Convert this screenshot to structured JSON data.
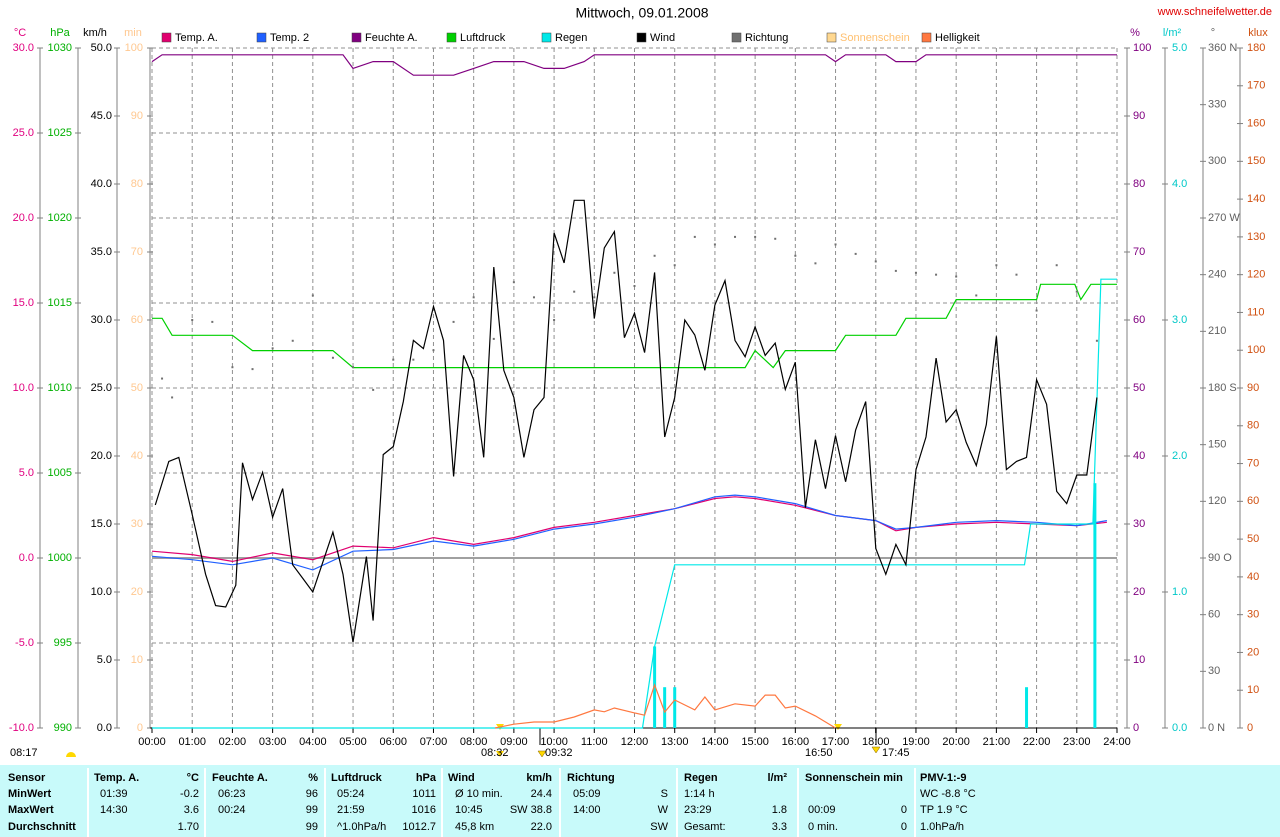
{
  "chart_data": {
    "type": "line",
    "title": "Mittwoch, 09.01.2008",
    "source": "www.schneifelwetter.de",
    "xlim": [
      0,
      24
    ],
    "xticks": [
      {
        "value": 0,
        "label": "00:00"
      },
      {
        "value": 1,
        "label": "01:00"
      },
      {
        "value": 2,
        "label": "02:00"
      },
      {
        "value": 3,
        "label": "03:00"
      },
      {
        "value": 4,
        "label": "04:00"
      },
      {
        "value": 5,
        "label": "05:00"
      },
      {
        "value": 6,
        "label": "06:00"
      },
      {
        "value": 7,
        "label": "07:00"
      },
      {
        "value": 8,
        "label": "08:00"
      },
      {
        "value": 9,
        "label": "09:00"
      },
      {
        "value": 10,
        "label": "10:00"
      },
      {
        "value": 11,
        "label": "11:00"
      },
      {
        "value": 12,
        "label": "12:00"
      },
      {
        "value": 13,
        "label": "13:00"
      },
      {
        "value": 14,
        "label": "14:00"
      },
      {
        "value": 15,
        "label": "15:00"
      },
      {
        "value": 16,
        "label": "16:00"
      },
      {
        "value": 17,
        "label": "17:00"
      },
      {
        "value": 18,
        "label": "18:00"
      },
      {
        "value": 19,
        "label": "19:00"
      },
      {
        "value": 20,
        "label": "20:00"
      },
      {
        "value": 21,
        "label": "21:00"
      },
      {
        "value": 22,
        "label": "22:00"
      },
      {
        "value": 23,
        "label": "23:00"
      },
      {
        "value": 24,
        "label": "24:00"
      }
    ],
    "axes": [
      {
        "label": "°C",
        "side": "left",
        "color": "#e0007f",
        "grid": true,
        "ylim": [
          -10,
          30
        ],
        "yticks": [
          {
            "value": -10,
            "label": "-10.0"
          },
          {
            "value": -5,
            "label": "-5.0"
          },
          {
            "value": 0,
            "label": "0.0"
          },
          {
            "value": 5,
            "label": "5.0"
          },
          {
            "value": 10,
            "label": "10.0"
          },
          {
            "value": 15,
            "label": "15.0"
          },
          {
            "value": 20,
            "label": "20.0"
          },
          {
            "value": 25,
            "label": "25.0"
          },
          {
            "value": 30,
            "label": "30.0"
          }
        ]
      },
      {
        "label": "hPa",
        "side": "left",
        "color": "#00b000",
        "ylim": [
          990,
          1030
        ],
        "yticks": [
          990,
          995,
          1000,
          1005,
          1010,
          1015,
          1020,
          1025,
          1030
        ]
      },
      {
        "label": "km/h",
        "side": "left",
        "color": "#000000",
        "ylim": [
          0,
          50
        ],
        "yticks": [
          {
            "value": 0,
            "label": "0.0"
          },
          {
            "value": 5,
            "label": "5.0"
          },
          {
            "value": 10,
            "label": "10.0"
          },
          {
            "value": 15,
            "label": "15.0"
          },
          {
            "value": 20,
            "label": "20.0"
          },
          {
            "value": 25,
            "label": "25.0"
          },
          {
            "value": 30,
            "label": "30.0"
          },
          {
            "value": 35,
            "label": "35.0"
          },
          {
            "value": 40,
            "label": "40.0"
          },
          {
            "value": 45,
            "label": "45.0"
          },
          {
            "value": 50,
            "label": "50.0"
          }
        ]
      },
      {
        "label": "min",
        "side": "left",
        "color": "#ffc890",
        "ylim": [
          0,
          100
        ],
        "yticks": [
          0,
          10,
          20,
          30,
          40,
          50,
          60,
          70,
          80,
          90,
          100
        ]
      },
      {
        "label": "%",
        "side": "right",
        "color": "#800080",
        "ylim": [
          0,
          100
        ],
        "yticks": [
          0,
          10,
          20,
          30,
          40,
          50,
          60,
          70,
          80,
          90,
          100
        ]
      },
      {
        "label": "l/m²",
        "side": "right",
        "color": "#00c8c8",
        "ylim": [
          0,
          5
        ],
        "yticks": [
          {
            "value": 0,
            "label": "0.0"
          },
          {
            "value": 1,
            "label": "1.0"
          },
          {
            "value": 2,
            "label": "2.0"
          },
          {
            "value": 3,
            "label": "3.0"
          },
          {
            "value": 4,
            "label": "4.0"
          },
          {
            "value": 5,
            "label": "5.0"
          }
        ]
      },
      {
        "label": "°",
        "side": "right",
        "color": "#606060",
        "ylim": [
          0,
          360
        ],
        "yticks": [
          {
            "value": 0,
            "label": "0 N"
          },
          30,
          60,
          {
            "value": 90,
            "label": "90 O"
          },
          120,
          150,
          {
            "value": 180,
            "label": "180 S"
          },
          210,
          240,
          {
            "value": 270,
            "label": "270 W"
          },
          300,
          330,
          {
            "value": 360,
            "label": "360 N"
          }
        ]
      },
      {
        "label": "klux",
        "side": "right",
        "color": "#d05010",
        "ylim": [
          0,
          180
        ],
        "yticks": [
          0,
          10,
          20,
          30,
          40,
          50,
          60,
          70,
          80,
          90,
          100,
          110,
          120,
          130,
          140,
          150,
          160,
          170,
          180
        ]
      }
    ],
    "series": [
      {
        "name": "Temp. A.",
        "color": "#e0006f",
        "type": "line",
        "axis": 0,
        "x": [
          0,
          1,
          2,
          3,
          4,
          5,
          6,
          7,
          8,
          9,
          10,
          11,
          12,
          13,
          14,
          14.5,
          15,
          16,
          17,
          18,
          18.5,
          19,
          20,
          21,
          22,
          23,
          23.75
        ],
        "values": [
          0.4,
          0.2,
          -0.2,
          0.3,
          -0.1,
          0.7,
          0.6,
          1.2,
          0.8,
          1.2,
          1.8,
          2.1,
          2.5,
          2.9,
          3.5,
          3.6,
          3.5,
          3.1,
          2.5,
          2.2,
          1.6,
          1.8,
          2.0,
          2.1,
          2.0,
          1.9,
          2.1
        ]
      },
      {
        "name": "Temp. 2",
        "color": "#2060ff",
        "type": "line",
        "axis": 0,
        "x": [
          0,
          1,
          2,
          3,
          4,
          5,
          6,
          7,
          8,
          9,
          10,
          11,
          12,
          13,
          14,
          14.5,
          15,
          16,
          17,
          18,
          18.5,
          19,
          20,
          21,
          22,
          23,
          23.75
        ],
        "values": [
          0.1,
          -0.1,
          -0.4,
          0.0,
          -0.7,
          0.4,
          0.5,
          1.0,
          0.7,
          1.1,
          1.7,
          2.0,
          2.4,
          2.9,
          3.6,
          3.7,
          3.6,
          3.2,
          2.5,
          2.2,
          1.7,
          1.8,
          2.1,
          2.2,
          2.1,
          1.9,
          2.2
        ]
      },
      {
        "name": "Feuchte A.",
        "color": "#800080",
        "type": "line",
        "axis": 4,
        "x": [
          0,
          0.25,
          4.75,
          5,
          5.5,
          6,
          6.5,
          7.5,
          8,
          8.5,
          9.25,
          9.75,
          10.25,
          10.75,
          11,
          16.75,
          17,
          17.25,
          18.25,
          18.5,
          19,
          19.25,
          24
        ],
        "values": [
          98,
          99,
          99,
          97,
          98,
          98,
          96,
          96,
          97,
          98,
          98,
          97,
          97,
          98,
          99,
          99,
          98,
          99,
          99,
          98,
          98,
          99,
          99
        ]
      },
      {
        "name": "Luftdruck",
        "color": "#00d000",
        "type": "line",
        "axis": 1,
        "x": [
          0,
          0.25,
          0.5,
          2,
          2.5,
          4.5,
          5,
          14.75,
          15,
          15.45,
          15.75,
          17,
          17.25,
          18.5,
          18.75,
          19.75,
          20,
          22,
          22.1,
          22.95,
          23.1,
          23.35,
          24
        ],
        "values": [
          1014.1,
          1014.1,
          1013.1,
          1013.1,
          1012.2,
          1012.2,
          1011.2,
          1011.2,
          1012.2,
          1011.2,
          1012.2,
          1012.2,
          1013.1,
          1013.1,
          1014.1,
          1014.1,
          1015.2,
          1015.2,
          1016.1,
          1016.1,
          1015.2,
          1016.1,
          1016.1
        ]
      },
      {
        "name": "Regen",
        "color": "#00e8e8",
        "type": "line",
        "axis": 5,
        "x": [
          0,
          12.2,
          12.5,
          13,
          21.7,
          21.85,
          23.4,
          23.6,
          24
        ],
        "values": [
          0,
          0,
          0.6,
          1.2,
          1.2,
          1.5,
          1.5,
          3.3,
          3.3
        ],
        "bars": {
          "x": [
            12.5,
            12.75,
            13,
            21.75,
            23.45
          ],
          "values": [
            0.6,
            0.3,
            0.3,
            0.3,
            1.8
          ]
        }
      },
      {
        "name": "Wind",
        "color": "#000000",
        "type": "line",
        "axis": 2,
        "x": [
          0.083,
          0.417,
          0.667,
          1,
          1.333,
          1.583,
          1.833,
          2.083,
          2.25,
          2.5,
          2.75,
          3,
          3.25,
          3.5,
          3.75,
          4,
          4.5,
          4.75,
          5,
          5.333,
          5.5,
          5.75,
          6,
          6.25,
          6.5,
          6.75,
          7,
          7.25,
          7.5,
          7.75,
          8,
          8.25,
          8.5,
          8.75,
          9,
          9.25,
          9.5,
          9.75,
          10,
          10.25,
          10.5,
          10.75,
          11,
          11.25,
          11.5,
          11.75,
          12,
          12.25,
          12.5,
          12.75,
          13,
          13.25,
          13.5,
          13.75,
          14,
          14.25,
          14.5,
          14.75,
          15,
          15.25,
          15.5,
          15.75,
          16,
          16.25,
          16.5,
          16.75,
          17,
          17.25,
          17.5,
          17.75,
          18,
          18.25,
          18.5,
          18.75,
          19,
          19.25,
          19.5,
          19.75,
          20,
          20.25,
          20.5,
          20.75,
          21,
          21.25,
          21.5,
          21.75,
          22,
          22.25,
          22.5,
          22.75,
          23,
          23.25,
          23.5
        ],
        "values": [
          16.4,
          19.6,
          19.9,
          15.7,
          11.3,
          9.0,
          8.9,
          10.5,
          19.5,
          16.8,
          18.8,
          15.5,
          17.6,
          12.0,
          11.0,
          10.0,
          14.4,
          11.3,
          6.3,
          12.6,
          7.9,
          20.1,
          20.7,
          24.0,
          28.5,
          27.9,
          31.0,
          28.5,
          18.5,
          27.4,
          25.6,
          19.9,
          33.9,
          26.3,
          24.3,
          19.9,
          23.4,
          24.3,
          36.4,
          34.2,
          38.8,
          38.8,
          30.1,
          35.3,
          36.5,
          28.7,
          30.5,
          27.6,
          33.5,
          21.4,
          24.3,
          30.0,
          28.9,
          26.3,
          31.1,
          32.9,
          28.5,
          27.3,
          29.5,
          27.4,
          28.3,
          24.9,
          26.9,
          16.2,
          21.2,
          17.6,
          21.5,
          18.1,
          21.9,
          24.0,
          13.2,
          11.3,
          13.5,
          12.0,
          19.0,
          21.4,
          27.2,
          22.5,
          23.4,
          21.0,
          19.3,
          22.3,
          28.8,
          19.0,
          19.6,
          19.9,
          25.6,
          23.8,
          17.4,
          16.5,
          18.6,
          18.6,
          24.3
        ]
      },
      {
        "name": "Richtung",
        "color": "#707070",
        "type": "scatter",
        "axis": 6,
        "x": [
          0.25,
          0.5,
          1,
          1.5,
          2,
          2.5,
          3,
          3.5,
          4,
          4.5,
          5,
          5.5,
          6,
          6.5,
          7,
          7.5,
          8,
          8.5,
          9,
          9.5,
          10,
          10.5,
          11,
          11.5,
          12,
          12.5,
          13,
          13.5,
          14,
          14.5,
          15,
          15.5,
          16,
          16.5,
          17,
          17.5,
          18,
          18.5,
          19,
          19.5,
          20,
          20.5,
          21,
          21.5,
          22,
          22.5,
          23,
          23.5
        ],
        "values": [
          185,
          175,
          216,
          215,
          191,
          190,
          201,
          205,
          229,
          196,
          191,
          179,
          195,
          195,
          200,
          215,
          228,
          206,
          236,
          228,
          216,
          231,
          228,
          241,
          234,
          250,
          245,
          260,
          256,
          260,
          260,
          259,
          250,
          246,
          256,
          251,
          247,
          242,
          241,
          240,
          239,
          229,
          245,
          240,
          221,
          245,
          231,
          205
        ]
      },
      {
        "name": "Sonnenschein",
        "color": "#ffd890",
        "type": "line",
        "axis": 3
      },
      {
        "name": "Helligkeit",
        "color": "#ff7840",
        "type": "line",
        "axis": 7,
        "x": [
          8.53,
          9,
          9.5,
          10,
          10.5,
          11,
          11.25,
          11.5,
          12,
          12.25,
          12.5,
          12.75,
          13,
          13.5,
          13.75,
          14,
          14.5,
          15,
          15.25,
          15.5,
          15.75,
          16,
          16.5,
          17
        ],
        "values": [
          0,
          1.0,
          1.6,
          1.6,
          2.9,
          4.8,
          4.3,
          5.3,
          4.0,
          3.4,
          11.4,
          4.2,
          7.4,
          4.8,
          8.2,
          4.8,
          6.4,
          5.8,
          8.7,
          8.7,
          5.3,
          5.8,
          3.2,
          0
        ]
      }
    ],
    "annotations": [
      "08:17",
      "08:32",
      "09:32",
      "16:50",
      "17:45"
    ]
  },
  "table": {
    "corner": "Sensor",
    "row_labels": [
      "MinWert",
      "MaxWert",
      "Durchschnitt"
    ],
    "groups": [
      {
        "title": "Temp. A.",
        "unit": "°C",
        "rows": [
          [
            "01:39",
            "-0.2"
          ],
          [
            "14:30",
            "3.6"
          ],
          [
            null,
            "1.70"
          ]
        ]
      },
      {
        "title": "Feuchte A.",
        "unit": "%",
        "rows": [
          [
            "06:23",
            "96"
          ],
          [
            "00:24",
            "99"
          ],
          [
            null,
            "99"
          ]
        ]
      },
      {
        "title": "Luftdruck",
        "unit": "hPa",
        "rows": [
          [
            "05:24",
            "1011"
          ],
          [
            "21:59",
            "1016"
          ],
          [
            "^1.0hPa/h",
            "1012.7"
          ]
        ]
      },
      {
        "title": "Wind",
        "unit": "km/h",
        "rows": [
          [
            "Ø 10 min.",
            "24.4"
          ],
          [
            "10:45",
            "SW 38.8"
          ],
          [
            "45,8 km",
            "22.0"
          ]
        ]
      },
      {
        "title": "Richtung",
        "unit": null,
        "rows": [
          [
            "05:09",
            "S"
          ],
          [
            "14:00",
            "W"
          ],
          [
            null,
            "SW"
          ]
        ]
      },
      {
        "title": "Regen",
        "unit": "l/m²",
        "rows": [
          [
            "1:14 h",
            null
          ],
          [
            "23:29",
            "1.8"
          ],
          [
            "Gesamt:",
            "3.3"
          ]
        ]
      },
      {
        "title": "Sonnenschein min",
        "unit": null,
        "rows": [
          [
            null,
            null
          ],
          [
            "00:09",
            "0"
          ],
          [
            "0 min.",
            "0"
          ]
        ]
      },
      {
        "title": "PMV-1:-9",
        "unit": null,
        "rows": [
          [
            "WC -8.8 °C"
          ],
          [
            "TP 1.9 °C"
          ],
          [
            "1.0hPa/h"
          ]
        ]
      }
    ]
  }
}
